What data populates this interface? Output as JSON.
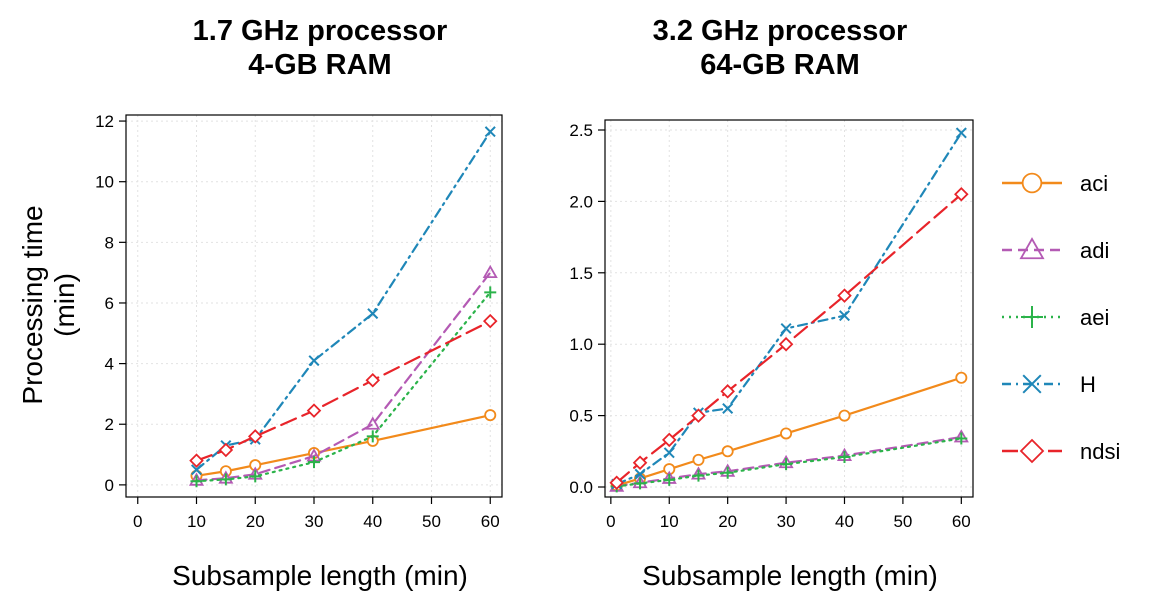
{
  "colors": {
    "aci": "#f28a1b",
    "adi": "#b45ab4",
    "aei": "#2bb34a",
    "H": "#1f87b8",
    "ndsi": "#e8242a"
  },
  "legend": [
    {
      "key": "aci",
      "label": "aci",
      "marker": "circle",
      "dash": "solid"
    },
    {
      "key": "adi",
      "label": "adi",
      "marker": "triangle",
      "dash": "dashed"
    },
    {
      "key": "aei",
      "label": "aei",
      "marker": "plus",
      "dash": "dotted"
    },
    {
      "key": "H",
      "label": "H",
      "marker": "x",
      "dash": "dotdash"
    },
    {
      "key": "ndsi",
      "label": "ndsi",
      "marker": "diamond",
      "dash": "longdash"
    }
  ],
  "shared_ylabel": [
    "Processing time",
    "(min)"
  ],
  "chart_data": [
    {
      "type": "line",
      "title_lines": [
        "1.7 GHz processor",
        "4-GB RAM"
      ],
      "xlabel": "Subsample length (min)",
      "xlim": [
        -2,
        62
      ],
      "ylim": [
        -0.4,
        12.2
      ],
      "xticks": [
        0,
        10,
        20,
        30,
        40,
        50,
        60
      ],
      "yticks": [
        0,
        2,
        4,
        6,
        8,
        10,
        12
      ],
      "yticklabels": [
        "0",
        "2",
        "4",
        "6",
        "8",
        "10",
        "12"
      ],
      "grid": true,
      "series": [
        {
          "key": "aci",
          "name": "aci",
          "x": [
            10,
            15,
            20,
            30,
            40,
            60
          ],
          "y": [
            0.3,
            0.45,
            0.65,
            1.05,
            1.45,
            2.3
          ]
        },
        {
          "key": "adi",
          "name": "adi",
          "x": [
            10,
            15,
            20,
            30,
            40,
            60
          ],
          "y": [
            0.15,
            0.22,
            0.35,
            0.95,
            2.0,
            7.0
          ]
        },
        {
          "key": "aei",
          "name": "aei",
          "x": [
            10,
            15,
            20,
            30,
            40,
            60
          ],
          "y": [
            0.12,
            0.18,
            0.28,
            0.75,
            1.6,
            6.35
          ]
        },
        {
          "key": "H",
          "name": "H",
          "x": [
            10,
            15,
            20,
            30,
            40,
            60
          ],
          "y": [
            0.5,
            1.3,
            1.5,
            4.1,
            5.65,
            11.65
          ]
        },
        {
          "key": "ndsi",
          "name": "ndsi",
          "x": [
            10,
            15,
            20,
            30,
            40,
            60
          ],
          "y": [
            0.8,
            1.15,
            1.6,
            2.45,
            3.45,
            5.4
          ]
        }
      ]
    },
    {
      "type": "line",
      "title_lines": [
        "3.2 GHz processor",
        "64-GB RAM"
      ],
      "xlabel": "Subsample length (min)",
      "xlim": [
        -1,
        62
      ],
      "ylim": [
        -0.07,
        2.57
      ],
      "xticks": [
        0,
        10,
        20,
        30,
        40,
        50,
        60
      ],
      "yticks": [
        0,
        0.5,
        1.0,
        1.5,
        2.0,
        2.5
      ],
      "yticklabels": [
        "0.0",
        "0.5",
        "1.0",
        "1.5",
        "2.0",
        "2.5"
      ],
      "grid": true,
      "series": [
        {
          "key": "aci",
          "name": "aci",
          "x": [
            1,
            5,
            10,
            15,
            20,
            30,
            40,
            60
          ],
          "y": [
            0.01,
            0.06,
            0.125,
            0.19,
            0.25,
            0.375,
            0.5,
            0.765
          ]
        },
        {
          "key": "adi",
          "name": "adi",
          "x": [
            1,
            5,
            10,
            15,
            20,
            30,
            40,
            60
          ],
          "y": [
            0.005,
            0.03,
            0.06,
            0.09,
            0.11,
            0.17,
            0.22,
            0.35
          ]
        },
        {
          "key": "aei",
          "name": "aei",
          "x": [
            1,
            5,
            10,
            15,
            20,
            30,
            40,
            60
          ],
          "y": [
            0.004,
            0.025,
            0.05,
            0.08,
            0.1,
            0.16,
            0.21,
            0.34
          ]
        },
        {
          "key": "H",
          "name": "H",
          "x": [
            1,
            5,
            10,
            15,
            20,
            30,
            40,
            60
          ],
          "y": [
            0.02,
            0.09,
            0.24,
            0.52,
            0.55,
            1.11,
            1.2,
            2.48
          ]
        },
        {
          "key": "ndsi",
          "name": "ndsi",
          "x": [
            1,
            5,
            10,
            15,
            20,
            30,
            40,
            60
          ],
          "y": [
            0.03,
            0.17,
            0.33,
            0.5,
            0.67,
            1.0,
            1.34,
            2.05
          ]
        }
      ]
    }
  ]
}
